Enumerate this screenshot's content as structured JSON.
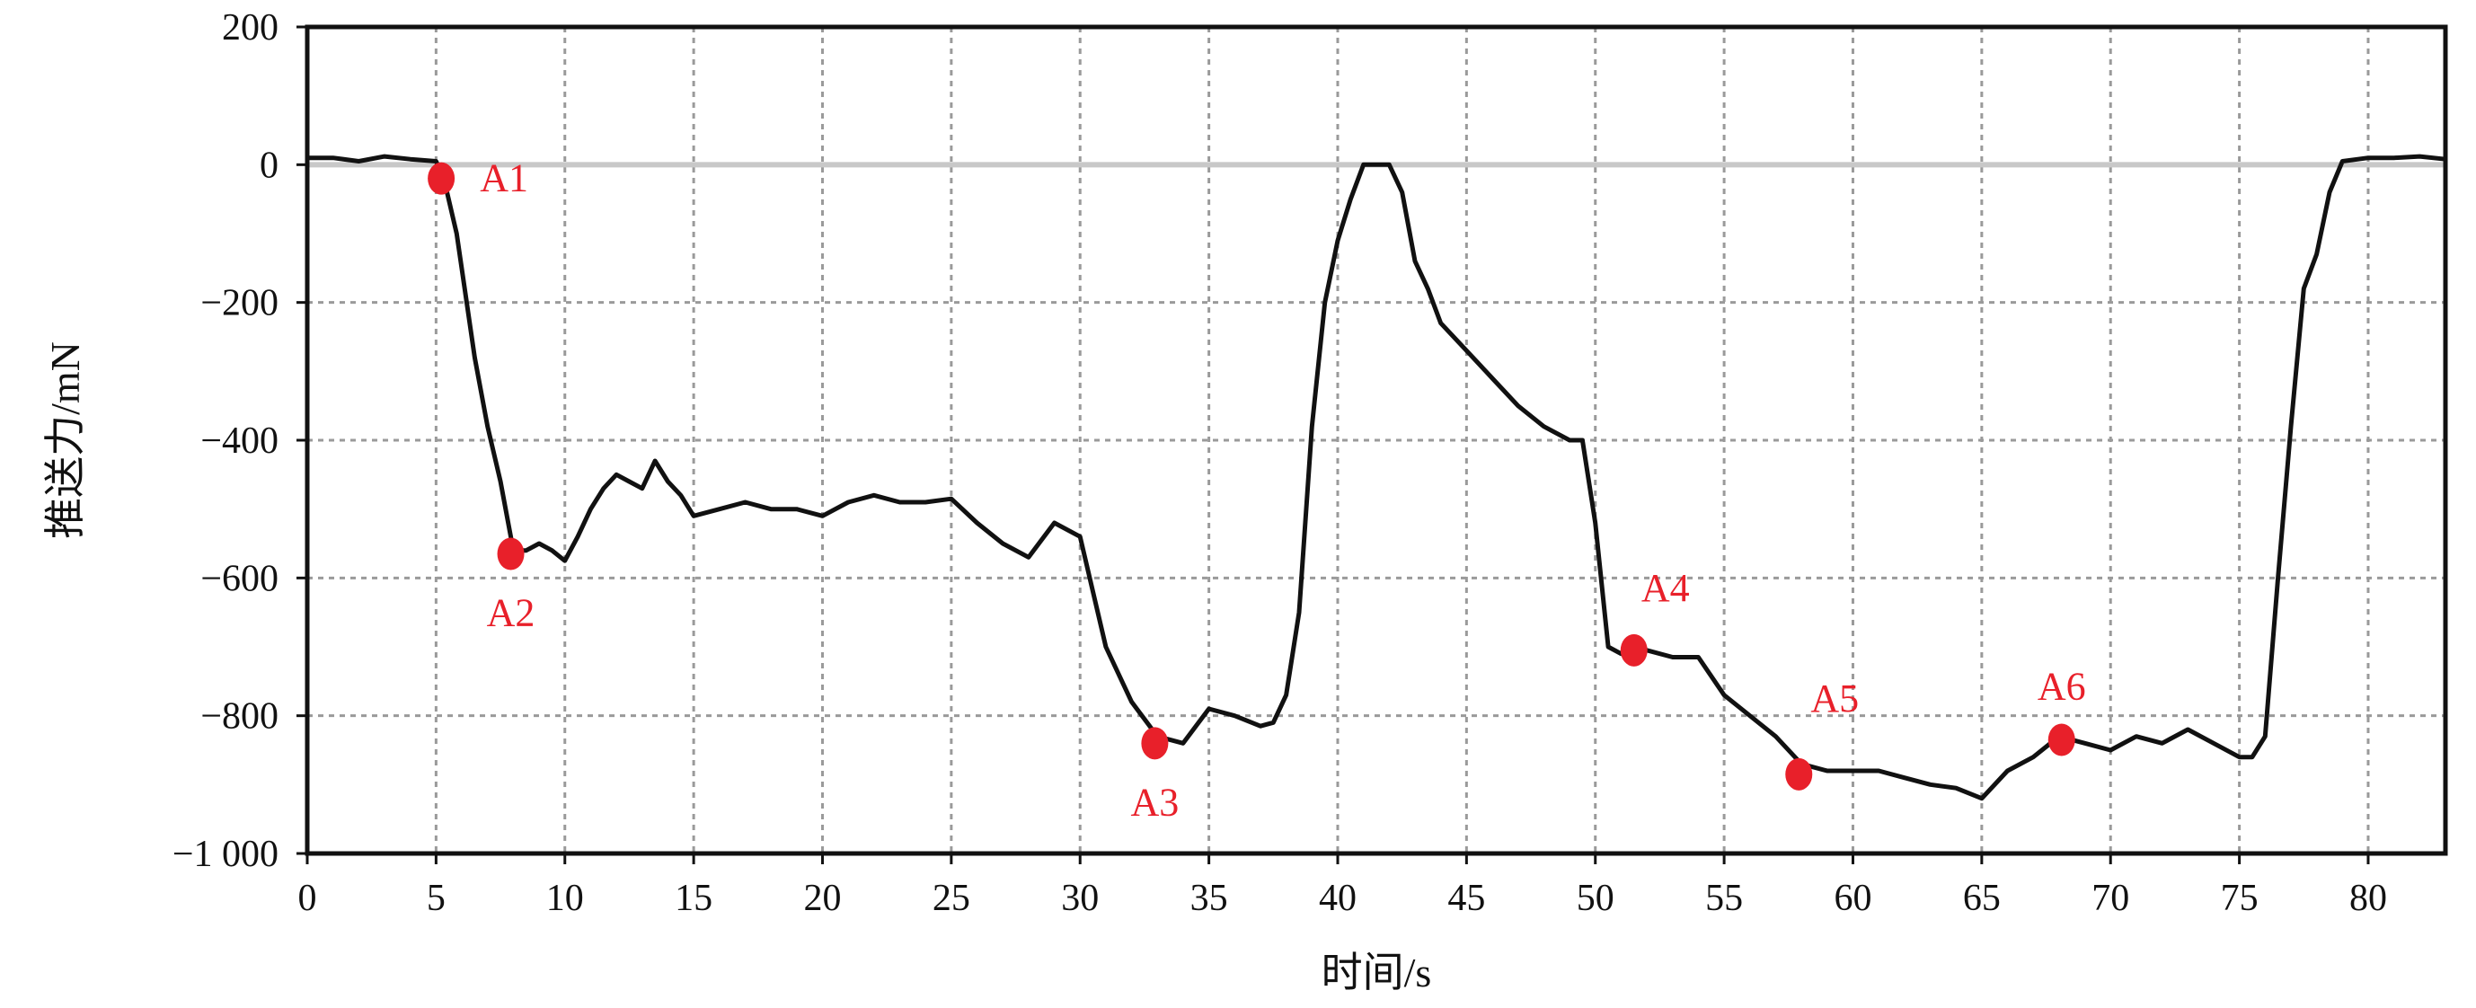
{
  "chart_data": {
    "type": "line",
    "xlabel": "时间/s",
    "ylabel": "推送力/mN",
    "xlim": [
      0,
      83
    ],
    "ylim": [
      -1000,
      200
    ],
    "x_ticks": [
      0,
      5,
      10,
      15,
      20,
      25,
      30,
      35,
      40,
      45,
      50,
      55,
      60,
      65,
      70,
      75,
      80
    ],
    "x_tick_labels": [
      "0",
      "5",
      "10",
      "15",
      "20",
      "25",
      "30",
      "35",
      "40",
      "45",
      "50",
      "55",
      "60",
      "65",
      "70",
      "75",
      "80"
    ],
    "y_ticks": [
      200,
      0,
      -200,
      -400,
      -600,
      -800,
      -1000
    ],
    "y_tick_labels": [
      "200",
      "0",
      "−200",
      "−400",
      "−600",
      "−800",
      "−1 000"
    ],
    "grid": true,
    "reference_line_y": 0,
    "colors": {
      "line": "#111111",
      "points": "#e8202a",
      "grid": "#9a9a9a",
      "reference": "#c8c8c8"
    },
    "series": [
      {
        "x": [
          0,
          1,
          2,
          3,
          4,
          5,
          5.3,
          5.8,
          6.5,
          7,
          7.5,
          8,
          8.5,
          9,
          9.5,
          10,
          10.5,
          11,
          11.5,
          12,
          12.5,
          13,
          13.5,
          14,
          14.5,
          15,
          16,
          17,
          18,
          19,
          20,
          21,
          22,
          23,
          24,
          25,
          26,
          27,
          28,
          29,
          30,
          31,
          32,
          33,
          34,
          35,
          36,
          37,
          37.5,
          38,
          38.5,
          39,
          39.5,
          40,
          40.5,
          41,
          41.5,
          42,
          42.5,
          43,
          43.5,
          44,
          45,
          46,
          47,
          48,
          49,
          49.5,
          50,
          50.5,
          51,
          51.5,
          52,
          53,
          54,
          55,
          56,
          57,
          58,
          59,
          60,
          61,
          62,
          63,
          64,
          65,
          66,
          67,
          68,
          69,
          70,
          71,
          72,
          73,
          74,
          75,
          75.5,
          76,
          76.5,
          77,
          77.5,
          78,
          78.5,
          79,
          80,
          81,
          82,
          83
        ],
        "y": [
          10,
          10,
          5,
          12,
          8,
          5,
          -20,
          -100,
          -280,
          -380,
          -460,
          -560,
          -560,
          -550,
          -560,
          -575,
          -540,
          -500,
          -470,
          -450,
          -460,
          -470,
          -430,
          -460,
          -480,
          -510,
          -500,
          -490,
          -500,
          -500,
          -510,
          -490,
          -480,
          -490,
          -490,
          -485,
          -520,
          -550,
          -570,
          -520,
          -540,
          -700,
          -780,
          -830,
          -840,
          -790,
          -800,
          -815,
          -810,
          -770,
          -650,
          -380,
          -200,
          -110,
          -50,
          0,
          0,
          0,
          -40,
          -140,
          -180,
          -230,
          -270,
          -310,
          -350,
          -380,
          -400,
          -400,
          -520,
          -700,
          -710,
          -710,
          -705,
          -715,
          -715,
          -770,
          -800,
          -830,
          -870,
          -880,
          -880,
          -880,
          -890,
          -900,
          -905,
          -920,
          -880,
          -860,
          -830,
          -840,
          -850,
          -830,
          -840,
          -820,
          -840,
          -860,
          -860,
          -830,
          -600,
          -380,
          -180,
          -130,
          -40,
          5,
          10,
          10,
          12,
          8
        ]
      }
    ],
    "points": [
      {
        "label": "A1",
        "x": 5.2,
        "y": -20
      },
      {
        "label": "A2",
        "x": 7.9,
        "y": -565
      },
      {
        "label": "A3",
        "x": 32.9,
        "y": -840
      },
      {
        "label": "A4",
        "x": 51.5,
        "y": -705
      },
      {
        "label": "A5",
        "x": 57.9,
        "y": -885
      },
      {
        "label": "A6",
        "x": 68.1,
        "y": -835
      }
    ]
  }
}
